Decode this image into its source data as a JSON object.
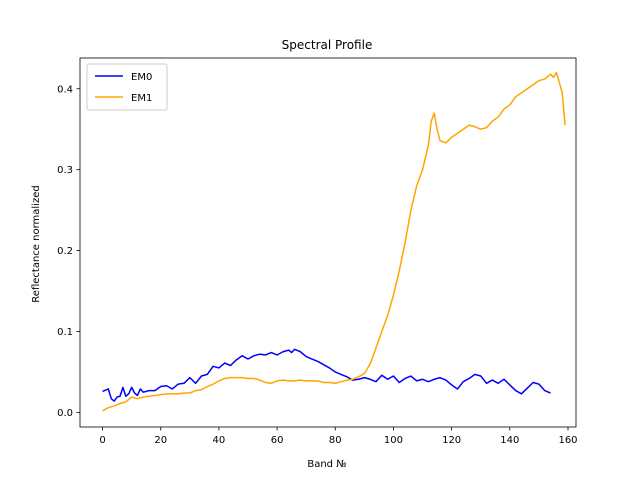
{
  "chart_data": {
    "type": "line",
    "title": "Spectral Profile",
    "xlabel": "Band №",
    "ylabel": "Reflectance normalized",
    "xlim": [
      -7.75,
      162.75
    ],
    "ylim": [
      -0.018,
      0.438
    ],
    "xticks": [
      0,
      20,
      40,
      60,
      80,
      100,
      120,
      140,
      160
    ],
    "yticks": [
      0.0,
      0.1,
      0.2,
      0.3,
      0.4
    ],
    "xtick_labels": [
      "0",
      "20",
      "40",
      "60",
      "80",
      "100",
      "120",
      "140",
      "160"
    ],
    "ytick_labels": [
      "0.0",
      "0.1",
      "0.2",
      "0.3",
      "0.4"
    ],
    "grid": false,
    "legend_position": "top-left",
    "colors": {
      "EM0": "#0000ff",
      "EM1": "#ffa500"
    },
    "series": [
      {
        "name": "EM0",
        "color": "#0000ff",
        "points": [
          [
            0,
            0.026
          ],
          [
            2,
            0.029
          ],
          [
            3,
            0.017
          ],
          [
            4,
            0.014
          ],
          [
            5,
            0.019
          ],
          [
            6,
            0.02
          ],
          [
            7,
            0.031
          ],
          [
            8,
            0.02
          ],
          [
            9,
            0.023
          ],
          [
            10,
            0.031
          ],
          [
            11,
            0.024
          ],
          [
            12,
            0.021
          ],
          [
            13,
            0.029
          ],
          [
            14,
            0.025
          ],
          [
            16,
            0.027
          ],
          [
            18,
            0.027
          ],
          [
            20,
            0.032
          ],
          [
            22,
            0.033
          ],
          [
            24,
            0.029
          ],
          [
            26,
            0.035
          ],
          [
            28,
            0.036
          ],
          [
            30,
            0.043
          ],
          [
            32,
            0.036
          ],
          [
            34,
            0.045
          ],
          [
            36,
            0.047
          ],
          [
            38,
            0.057
          ],
          [
            40,
            0.055
          ],
          [
            42,
            0.061
          ],
          [
            44,
            0.058
          ],
          [
            46,
            0.065
          ],
          [
            48,
            0.07
          ],
          [
            50,
            0.066
          ],
          [
            52,
            0.07
          ],
          [
            54,
            0.072
          ],
          [
            56,
            0.071
          ],
          [
            58,
            0.074
          ],
          [
            60,
            0.071
          ],
          [
            62,
            0.075
          ],
          [
            64,
            0.077
          ],
          [
            65,
            0.074
          ],
          [
            66,
            0.078
          ],
          [
            68,
            0.075
          ],
          [
            70,
            0.069
          ],
          [
            72,
            0.066
          ],
          [
            74,
            0.063
          ],
          [
            76,
            0.059
          ],
          [
            78,
            0.055
          ],
          [
            80,
            0.05
          ],
          [
            82,
            0.047
          ],
          [
            84,
            0.044
          ],
          [
            86,
            0.04
          ],
          [
            88,
            0.041
          ],
          [
            90,
            0.043
          ],
          [
            92,
            0.041
          ],
          [
            94,
            0.038
          ],
          [
            96,
            0.046
          ],
          [
            98,
            0.041
          ],
          [
            100,
            0.045
          ],
          [
            102,
            0.037
          ],
          [
            104,
            0.042
          ],
          [
            106,
            0.045
          ],
          [
            108,
            0.039
          ],
          [
            110,
            0.041
          ],
          [
            112,
            0.038
          ],
          [
            114,
            0.041
          ],
          [
            116,
            0.043
          ],
          [
            118,
            0.04
          ],
          [
            120,
            0.034
          ],
          [
            122,
            0.029
          ],
          [
            124,
            0.038
          ],
          [
            126,
            0.042
          ],
          [
            128,
            0.047
          ],
          [
            130,
            0.045
          ],
          [
            132,
            0.036
          ],
          [
            134,
            0.04
          ],
          [
            136,
            0.036
          ],
          [
            138,
            0.041
          ],
          [
            140,
            0.034
          ],
          [
            142,
            0.027
          ],
          [
            144,
            0.023
          ],
          [
            146,
            0.03
          ],
          [
            148,
            0.037
          ],
          [
            150,
            0.035
          ],
          [
            152,
            0.027
          ],
          [
            154,
            0.024
          ]
        ],
        "points_note": ""
      },
      {
        "name": "EM1",
        "color": "#ffa500",
        "points": [
          [
            0,
            0.002
          ],
          [
            2,
            0.006
          ],
          [
            4,
            0.008
          ],
          [
            6,
            0.011
          ],
          [
            8,
            0.013
          ],
          [
            10,
            0.019
          ],
          [
            12,
            0.017
          ],
          [
            14,
            0.019
          ],
          [
            16,
            0.02
          ],
          [
            18,
            0.021
          ],
          [
            20,
            0.022
          ],
          [
            22,
            0.023
          ],
          [
            24,
            0.023
          ],
          [
            26,
            0.023
          ],
          [
            28,
            0.024
          ],
          [
            30,
            0.024
          ],
          [
            32,
            0.027
          ],
          [
            34,
            0.028
          ],
          [
            36,
            0.032
          ],
          [
            38,
            0.035
          ],
          [
            40,
            0.039
          ],
          [
            42,
            0.042
          ],
          [
            44,
            0.043
          ],
          [
            46,
            0.043
          ],
          [
            48,
            0.043
          ],
          [
            50,
            0.042
          ],
          [
            52,
            0.042
          ],
          [
            54,
            0.04
          ],
          [
            56,
            0.037
          ],
          [
            58,
            0.036
          ],
          [
            60,
            0.039
          ],
          [
            62,
            0.04
          ],
          [
            64,
            0.039
          ],
          [
            66,
            0.039
          ],
          [
            68,
            0.04
          ],
          [
            70,
            0.039
          ],
          [
            72,
            0.039
          ],
          [
            74,
            0.039
          ],
          [
            76,
            0.037
          ],
          [
            78,
            0.037
          ],
          [
            80,
            0.036
          ],
          [
            82,
            0.038
          ],
          [
            84,
            0.04
          ],
          [
            86,
            0.041
          ],
          [
            88,
            0.044
          ],
          [
            90,
            0.048
          ],
          [
            92,
            0.06
          ],
          [
            94,
            0.08
          ],
          [
            96,
            0.1
          ],
          [
            98,
            0.12
          ],
          [
            100,
            0.145
          ],
          [
            102,
            0.175
          ],
          [
            104,
            0.21
          ],
          [
            106,
            0.25
          ],
          [
            108,
            0.28
          ],
          [
            110,
            0.3
          ],
          [
            112,
            0.33
          ],
          [
            113,
            0.36
          ],
          [
            114,
            0.37
          ],
          [
            115,
            0.35
          ],
          [
            116,
            0.336
          ],
          [
            118,
            0.333
          ],
          [
            120,
            0.34
          ],
          [
            122,
            0.345
          ],
          [
            124,
            0.35
          ],
          [
            126,
            0.355
          ],
          [
            128,
            0.353
          ],
          [
            130,
            0.35
          ],
          [
            132,
            0.352
          ],
          [
            134,
            0.36
          ],
          [
            136,
            0.365
          ],
          [
            138,
            0.375
          ],
          [
            140,
            0.38
          ],
          [
            142,
            0.39
          ],
          [
            144,
            0.395
          ],
          [
            146,
            0.4
          ],
          [
            148,
            0.405
          ],
          [
            150,
            0.41
          ],
          [
            152,
            0.412
          ],
          [
            154,
            0.418
          ],
          [
            155,
            0.414
          ],
          [
            156,
            0.42
          ],
          [
            157,
            0.408
          ],
          [
            158,
            0.395
          ],
          [
            159,
            0.355
          ]
        ]
      }
    ]
  }
}
